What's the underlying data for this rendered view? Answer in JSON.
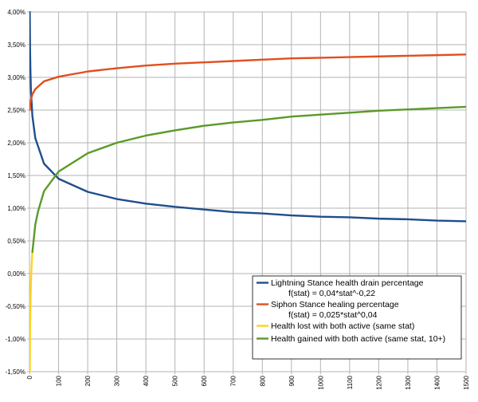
{
  "chart_data": {
    "type": "line",
    "title": "",
    "xlabel": "",
    "ylabel": "",
    "xlim": [
      0,
      1500
    ],
    "ylim": [
      -1.5,
      4.0
    ],
    "grid": true,
    "legend_position": "bottom-right",
    "x_ticks": [
      0,
      100,
      200,
      300,
      400,
      500,
      600,
      700,
      800,
      900,
      1000,
      1100,
      1200,
      1300,
      1400,
      1500
    ],
    "y_ticks": [
      -1.5,
      -1.0,
      -0.5,
      0.0,
      0.5,
      1.0,
      1.5,
      2.0,
      2.5,
      3.0,
      3.5,
      4.0
    ],
    "x_tick_labels": [
      "0",
      "100",
      "200",
      "300",
      "400",
      "500",
      "600",
      "700",
      "800",
      "900",
      "1000",
      "1100",
      "1200",
      "1300",
      "1400",
      "1500"
    ],
    "y_tick_labels": [
      "-1,50%",
      "-1,00%",
      "-0,50%",
      "0,00%",
      "0,50%",
      "1,00%",
      "1,50%",
      "2,00%",
      "2,50%",
      "3,00%",
      "3,50%",
      "4,00%"
    ],
    "series": [
      {
        "name": "Lightning Stance health drain percentage",
        "formula": "f(stat) = 0,04*stat^-0,22",
        "color": "#1f4e8c",
        "x": [
          1,
          2,
          3,
          5,
          10,
          20,
          50,
          100,
          200,
          300,
          400,
          500,
          600,
          700,
          800,
          900,
          1000,
          1100,
          1200,
          1300,
          1400,
          1500
        ],
        "values": [
          4.0,
          3.43,
          3.15,
          2.8,
          2.41,
          2.07,
          1.68,
          1.45,
          1.25,
          1.14,
          1.07,
          1.02,
          0.98,
          0.94,
          0.92,
          0.89,
          0.87,
          0.86,
          0.84,
          0.83,
          0.81,
          0.8
        ]
      },
      {
        "name": "Siphon Stance healing percentage",
        "formula": "f(stat) = 0,025*stat^0,04",
        "color": "#e0501e",
        "x": [
          1,
          2,
          3,
          5,
          10,
          20,
          50,
          100,
          200,
          300,
          400,
          500,
          600,
          700,
          800,
          900,
          1000,
          1100,
          1200,
          1300,
          1400,
          1500
        ],
        "values": [
          2.5,
          2.57,
          2.61,
          2.66,
          2.74,
          2.82,
          2.94,
          3.01,
          3.09,
          3.14,
          3.18,
          3.21,
          3.23,
          3.25,
          3.27,
          3.29,
          3.3,
          3.31,
          3.32,
          3.33,
          3.34,
          3.35
        ]
      },
      {
        "name": "Health lost with both active (same stat)",
        "color": "#ffd21e",
        "x": [
          1,
          2,
          3,
          4,
          5,
          7,
          10
        ],
        "values": [
          -1.5,
          -0.86,
          -0.54,
          -0.33,
          -0.14,
          0.1,
          0.33
        ]
      },
      {
        "name": "Health gained with both active (same stat, 10+)",
        "color": "#5a9a28",
        "x": [
          10,
          20,
          30,
          50,
          100,
          200,
          300,
          400,
          500,
          600,
          700,
          800,
          900,
          1000,
          1100,
          1200,
          1300,
          1400,
          1500
        ],
        "values": [
          0.33,
          0.75,
          0.96,
          1.26,
          1.56,
          1.84,
          2.0,
          2.11,
          2.19,
          2.26,
          2.31,
          2.35,
          2.4,
          2.43,
          2.46,
          2.49,
          2.51,
          2.53,
          2.55
        ]
      }
    ]
  }
}
